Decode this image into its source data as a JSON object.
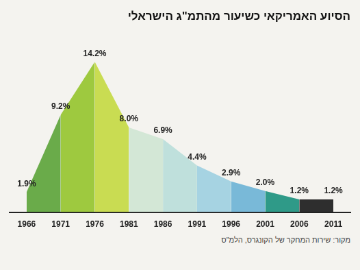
{
  "chart_data": {
    "type": "line",
    "title": "הסיוע האמריקאי כשיעור מהתמ\"ג הישראלי",
    "source": "מקור: שירות המחקר של הקונגרס, הלמ\"ס",
    "categories": [
      "1966",
      "1971",
      "1976",
      "1981",
      "1986",
      "1991",
      "1996",
      "2001",
      "2006",
      "2011"
    ],
    "values": [
      1.9,
      9.2,
      14.2,
      8.0,
      6.9,
      4.4,
      2.9,
      2.0,
      1.2,
      1.2
    ],
    "value_labels": [
      "1.9%",
      "9.2%",
      "14.2%",
      "8.0%",
      "6.9%",
      "4.4%",
      "2.9%",
      "2.0%",
      "1.2%",
      "1.2%"
    ],
    "colors": [
      "#6aab4a",
      "#9ec93f",
      "#c9dc52",
      "#d3e7d6",
      "#bfe0dc",
      "#a6d3e2",
      "#79b9d8",
      "#2f9a88",
      "#2e2e2e",
      "#2e2e2e"
    ],
    "ylim": [
      0,
      16
    ],
    "data_labels": true,
    "grid": false,
    "tick_labels": "x"
  }
}
